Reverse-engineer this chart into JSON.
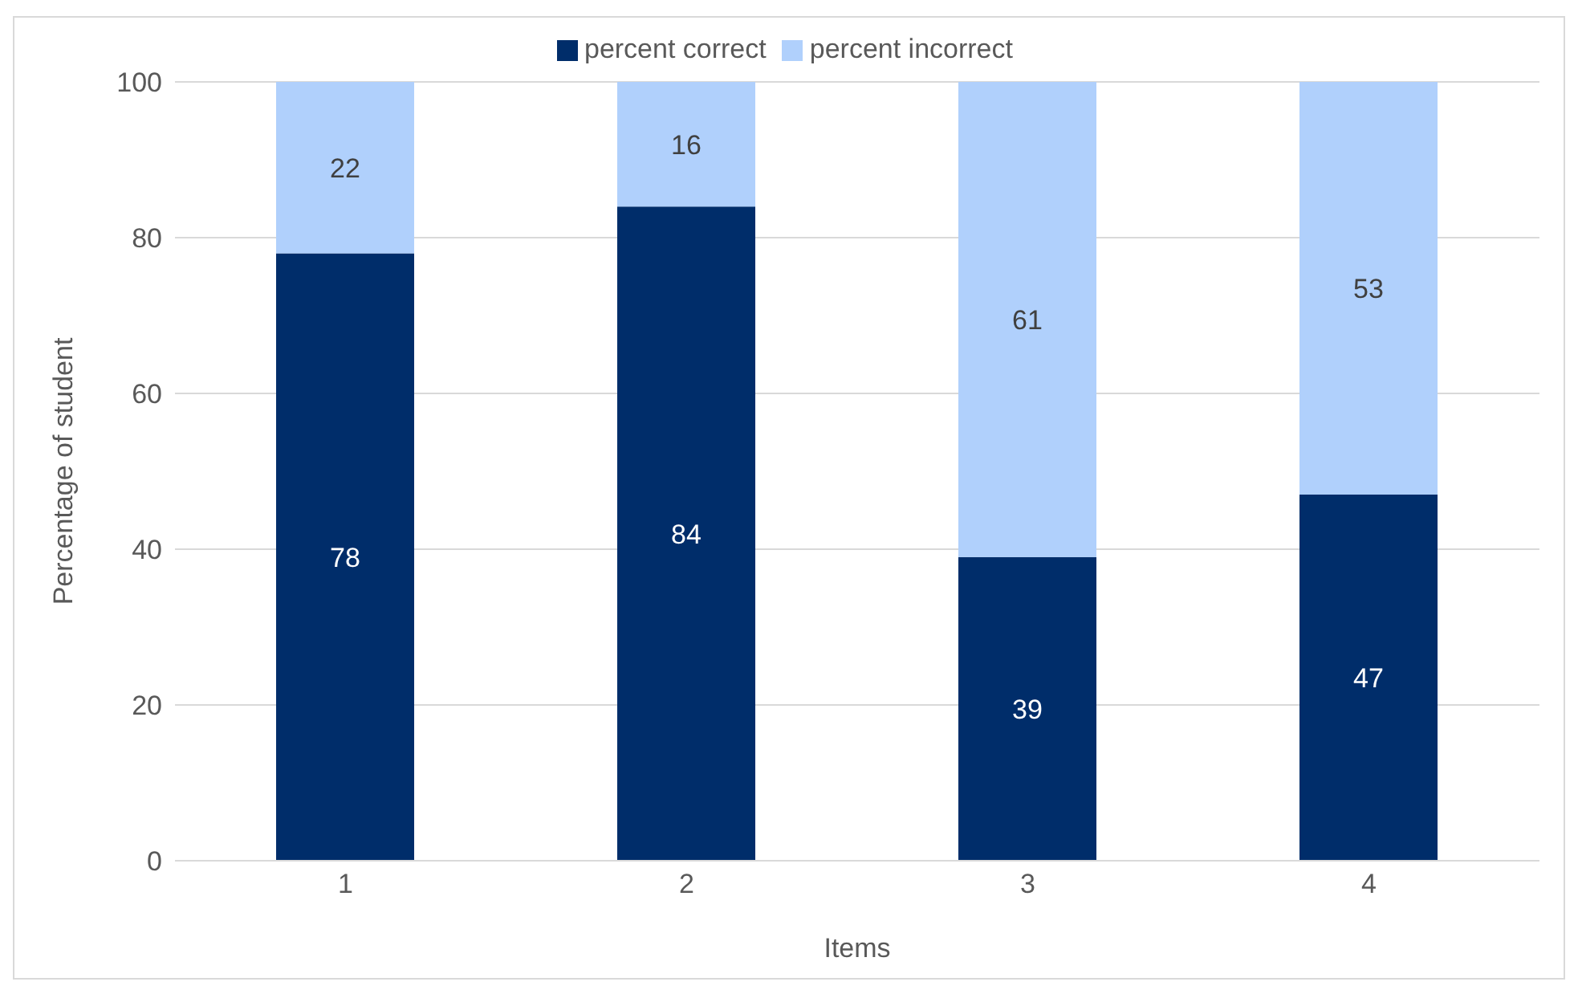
{
  "chart_data": {
    "type": "bar",
    "stacked": true,
    "categories": [
      "1",
      "2",
      "3",
      "4"
    ],
    "series": [
      {
        "name": "percent correct",
        "color": "#002d6a",
        "values": [
          78,
          84,
          39,
          47
        ]
      },
      {
        "name": "percent incorrect",
        "color": "#b0d0fc",
        "values": [
          22,
          16,
          61,
          53
        ]
      }
    ],
    "xlabel": "Items",
    "ylabel": "Percentage of student",
    "ylim": [
      0,
      100
    ],
    "yticks": [
      0,
      20,
      40,
      60,
      80,
      100
    ],
    "grid": "y",
    "legend": "top",
    "data_labels": true
  }
}
